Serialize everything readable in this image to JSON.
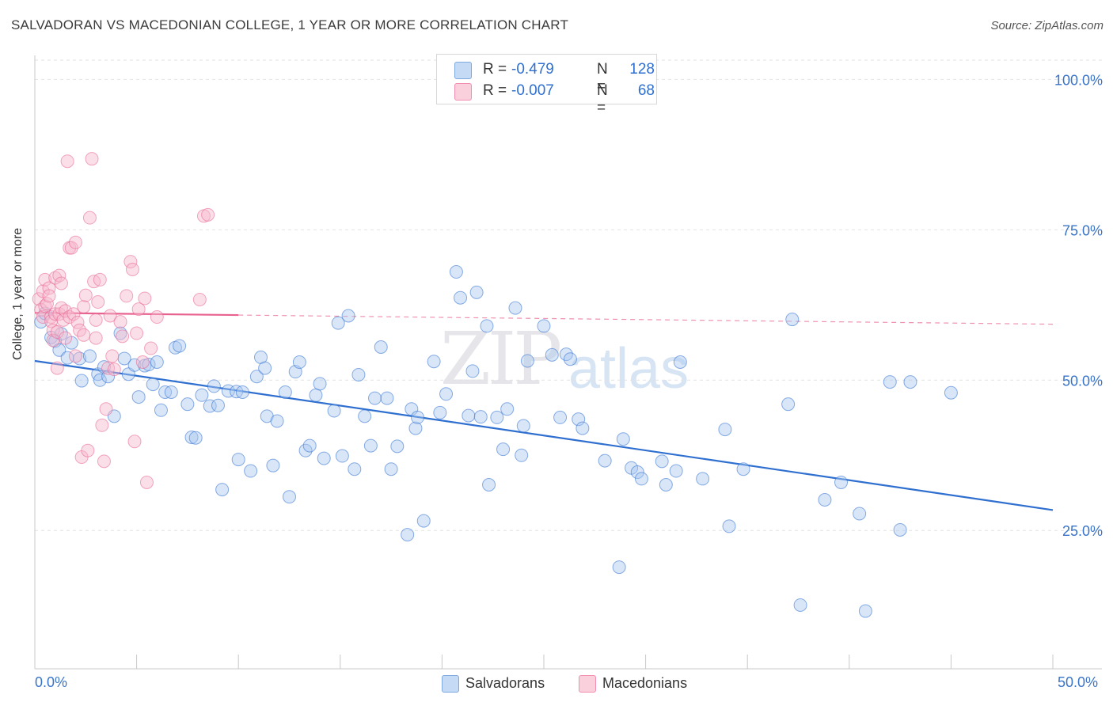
{
  "title": "SALVADORAN VS MACEDONIAN COLLEGE, 1 YEAR OR MORE CORRELATION CHART",
  "source": "Source: ZipAtlas.com",
  "watermark": {
    "zip": "ZIP",
    "atlas": "atlas"
  },
  "legend": {
    "rows": [
      {
        "r_label": "R =",
        "r_value": "-0.479",
        "n_label": "N =",
        "n_value": "128",
        "color": "#a9c8f0"
      },
      {
        "r_label": "R =",
        "r_value": "-0.007",
        "n_label": "N =",
        "n_value": "68",
        "color": "#f7b9cc"
      }
    ]
  },
  "bottom_legend": {
    "salvadorans": "Salvadorans",
    "macedonians": "Macedonians"
  },
  "x_axis_labels": {
    "min": "0.0%",
    "max": "50.0%"
  },
  "chart_data": {
    "type": "scatter",
    "title": "SALVADORAN VS MACEDONIAN COLLEGE, 1 YEAR OR MORE CORRELATION CHART",
    "xlabel": "",
    "ylabel": "College, 1 year or more",
    "xlim": [
      0,
      50
    ],
    "ylim": [
      2,
      104
    ],
    "y_ticks": [
      25,
      50,
      75,
      100
    ],
    "y_tick_labels": [
      "25.0%",
      "50.0%",
      "75.0%",
      "100.0%"
    ],
    "x_tick_labels": [
      "0.0%",
      "50.0%"
    ],
    "series": [
      {
        "name": "Salvadorans",
        "color": "#2f6fd0",
        "fill": "#a9c8f0",
        "r": -0.479,
        "n": 128,
        "trend": {
          "x": [
            0,
            50
          ],
          "y": [
            53.2,
            28.4
          ],
          "dashed_from": null
        },
        "points": [
          [
            0.3,
            59.7
          ],
          [
            0.5,
            61.1
          ],
          [
            0.8,
            57.1
          ],
          [
            1.0,
            56.5
          ],
          [
            1.3,
            57.7
          ],
          [
            1.2,
            55.0
          ],
          [
            1.6,
            53.7
          ],
          [
            1.8,
            56.2
          ],
          [
            2.2,
            53.6
          ],
          [
            2.3,
            49.9
          ],
          [
            2.7,
            54.0
          ],
          [
            3.1,
            51.0
          ],
          [
            3.2,
            50.0
          ],
          [
            3.4,
            52.2
          ],
          [
            3.6,
            50.6
          ],
          [
            3.9,
            44.0
          ],
          [
            4.2,
            57.8
          ],
          [
            4.4,
            53.6
          ],
          [
            4.6,
            51.0
          ],
          [
            4.9,
            52.5
          ],
          [
            5.1,
            47.2
          ],
          [
            5.4,
            52.4
          ],
          [
            5.6,
            52.6
          ],
          [
            5.8,
            49.3
          ],
          [
            6.0,
            53.0
          ],
          [
            6.2,
            45.0
          ],
          [
            6.4,
            48.0
          ],
          [
            6.7,
            48.0
          ],
          [
            6.9,
            55.4
          ],
          [
            7.1,
            55.7
          ],
          [
            7.5,
            46.0
          ],
          [
            7.7,
            40.5
          ],
          [
            7.9,
            40.4
          ],
          [
            8.2,
            47.5
          ],
          [
            8.6,
            45.7
          ],
          [
            8.8,
            49.0
          ],
          [
            9.0,
            45.8
          ],
          [
            9.2,
            31.8
          ],
          [
            9.5,
            48.2
          ],
          [
            9.9,
            48.1
          ],
          [
            10.2,
            48.0
          ],
          [
            10.0,
            36.8
          ],
          [
            10.6,
            34.9
          ],
          [
            10.9,
            50.6
          ],
          [
            11.1,
            53.8
          ],
          [
            11.3,
            52.0
          ],
          [
            11.4,
            44.0
          ],
          [
            11.7,
            35.8
          ],
          [
            11.9,
            43.2
          ],
          [
            12.3,
            48.0
          ],
          [
            12.5,
            30.6
          ],
          [
            12.8,
            51.4
          ],
          [
            13.0,
            53.0
          ],
          [
            13.3,
            38.3
          ],
          [
            13.5,
            39.1
          ],
          [
            13.8,
            47.5
          ],
          [
            14.0,
            49.4
          ],
          [
            14.2,
            37.0
          ],
          [
            14.7,
            44.9
          ],
          [
            14.9,
            59.5
          ],
          [
            15.1,
            37.4
          ],
          [
            15.4,
            60.7
          ],
          [
            15.7,
            35.2
          ],
          [
            15.9,
            50.9
          ],
          [
            16.2,
            44.0
          ],
          [
            16.5,
            39.1
          ],
          [
            16.7,
            47.0
          ],
          [
            17.0,
            55.5
          ],
          [
            17.3,
            47.0
          ],
          [
            17.5,
            35.2
          ],
          [
            17.8,
            39.0
          ],
          [
            18.3,
            24.3
          ],
          [
            18.5,
            45.2
          ],
          [
            18.7,
            42.0
          ],
          [
            18.8,
            43.8
          ],
          [
            19.1,
            26.6
          ],
          [
            19.6,
            53.1
          ],
          [
            19.9,
            44.6
          ],
          [
            20.2,
            47.7
          ],
          [
            20.7,
            68.0
          ],
          [
            20.9,
            63.7
          ],
          [
            21.3,
            44.1
          ],
          [
            21.5,
            51.5
          ],
          [
            21.7,
            64.6
          ],
          [
            21.9,
            43.9
          ],
          [
            22.2,
            59.0
          ],
          [
            22.3,
            32.6
          ],
          [
            22.7,
            43.8
          ],
          [
            23.0,
            38.5
          ],
          [
            23.2,
            45.2
          ],
          [
            23.6,
            62.0
          ],
          [
            23.9,
            37.5
          ],
          [
            24.0,
            42.4
          ],
          [
            24.2,
            53.2
          ],
          [
            25.0,
            59.0
          ],
          [
            25.4,
            54.2
          ],
          [
            25.8,
            43.8
          ],
          [
            26.1,
            54.3
          ],
          [
            26.3,
            53.5
          ],
          [
            26.7,
            43.5
          ],
          [
            26.9,
            42.0
          ],
          [
            28.0,
            36.6
          ],
          [
            28.7,
            18.9
          ],
          [
            28.9,
            40.2
          ],
          [
            29.3,
            35.4
          ],
          [
            29.6,
            34.7
          ],
          [
            29.8,
            33.6
          ],
          [
            30.8,
            36.5
          ],
          [
            31.0,
            32.6
          ],
          [
            31.5,
            34.9
          ],
          [
            31.7,
            53.0
          ],
          [
            32.8,
            33.6
          ],
          [
            33.9,
            41.8
          ],
          [
            34.1,
            25.7
          ],
          [
            34.8,
            35.2
          ],
          [
            37.0,
            46.0
          ],
          [
            37.2,
            60.1
          ],
          [
            37.6,
            12.6
          ],
          [
            38.8,
            30.1
          ],
          [
            39.6,
            33.0
          ],
          [
            40.5,
            27.8
          ],
          [
            40.8,
            11.6
          ],
          [
            42.0,
            49.7
          ],
          [
            42.5,
            25.1
          ],
          [
            43.0,
            49.7
          ],
          [
            45.0,
            47.9
          ]
        ]
      },
      {
        "name": "Macedonians",
        "color": "#e8628f",
        "fill": "#f7b9cc",
        "r": -0.007,
        "n": 68,
        "trend": {
          "x": [
            0,
            50
          ],
          "y": [
            61.2,
            59.3
          ],
          "dashed_from": 10
        },
        "points": [
          [
            0.2,
            63.5
          ],
          [
            0.3,
            61.7
          ],
          [
            0.4,
            60.5
          ],
          [
            0.4,
            64.8
          ],
          [
            0.5,
            66.7
          ],
          [
            0.5,
            62.3
          ],
          [
            0.6,
            62.7
          ],
          [
            0.7,
            65.3
          ],
          [
            0.7,
            64.0
          ],
          [
            0.8,
            60.5
          ],
          [
            0.8,
            59.8
          ],
          [
            0.9,
            58.3
          ],
          [
            0.9,
            56.6
          ],
          [
            1.0,
            67.0
          ],
          [
            1.0,
            61.0
          ],
          [
            1.1,
            58.0
          ],
          [
            1.1,
            52.0
          ],
          [
            1.2,
            61.0
          ],
          [
            1.2,
            67.4
          ],
          [
            1.3,
            66.1
          ],
          [
            1.3,
            62.0
          ],
          [
            1.4,
            60.0
          ],
          [
            1.5,
            61.5
          ],
          [
            1.5,
            57.0
          ],
          [
            1.6,
            86.4
          ],
          [
            1.7,
            72.0
          ],
          [
            1.7,
            60.5
          ],
          [
            1.8,
            72.0
          ],
          [
            1.9,
            61.0
          ],
          [
            2.0,
            72.9
          ],
          [
            2.0,
            54.0
          ],
          [
            2.1,
            59.6
          ],
          [
            2.2,
            58.3
          ],
          [
            2.3,
            37.2
          ],
          [
            2.4,
            62.2
          ],
          [
            2.4,
            57.5
          ],
          [
            2.5,
            64.1
          ],
          [
            2.6,
            38.3
          ],
          [
            2.7,
            77.0
          ],
          [
            2.8,
            86.8
          ],
          [
            2.9,
            66.4
          ],
          [
            3.0,
            60.0
          ],
          [
            3.0,
            57.0
          ],
          [
            3.1,
            63.0
          ],
          [
            3.2,
            66.7
          ],
          [
            3.3,
            42.5
          ],
          [
            3.4,
            36.5
          ],
          [
            3.5,
            45.2
          ],
          [
            3.6,
            52.0
          ],
          [
            3.7,
            60.7
          ],
          [
            3.8,
            54.0
          ],
          [
            3.9,
            51.8
          ],
          [
            4.2,
            59.7
          ],
          [
            4.3,
            57.3
          ],
          [
            4.5,
            64.0
          ],
          [
            4.7,
            69.7
          ],
          [
            4.8,
            68.4
          ],
          [
            4.9,
            39.8
          ],
          [
            5.0,
            57.8
          ],
          [
            5.1,
            61.8
          ],
          [
            5.3,
            53.0
          ],
          [
            5.4,
            63.6
          ],
          [
            5.5,
            33.0
          ],
          [
            5.7,
            55.3
          ],
          [
            6.0,
            60.5
          ],
          [
            8.1,
            63.4
          ],
          [
            8.3,
            77.3
          ],
          [
            8.5,
            77.5
          ]
        ]
      }
    ]
  }
}
